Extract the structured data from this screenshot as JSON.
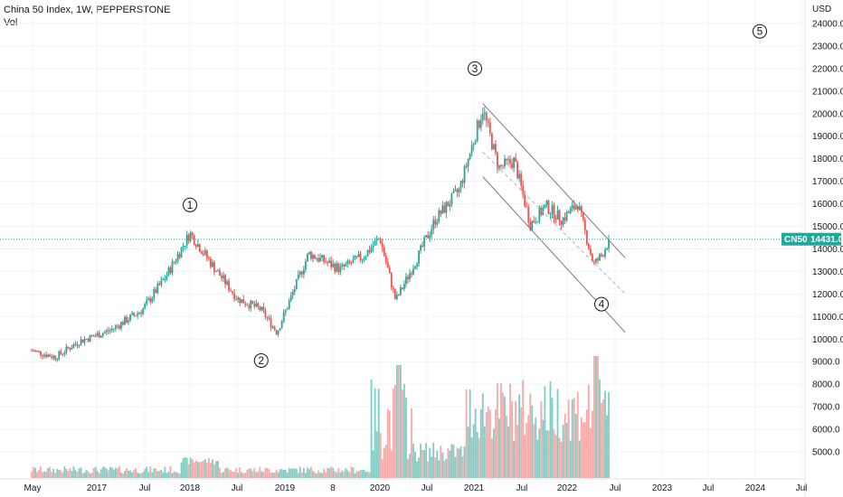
{
  "header": {
    "title": "China 50 Index, 1W, PEPPERSTONE",
    "sub": "Vol"
  },
  "colors": {
    "up": "#26a69a",
    "down": "#ef5350",
    "vol_up": "#80cbc4",
    "vol_down": "#f7a9a7",
    "channel": "#787b86",
    "price_line": "#26a69a",
    "grid": "#f0f3fa"
  },
  "chart_data": {
    "type": "candlestick",
    "symbol_tag": "CN50",
    "last_price": "14431.0",
    "y_axis_unit": "USD",
    "y_ticks": [
      "24000.0",
      "23000.0",
      "22000.0",
      "21000.0",
      "20000.0",
      "19000.0",
      "18000.0",
      "17000.0",
      "16000.0",
      "15000.0",
      "14000.0",
      "13000.0",
      "12000.0",
      "11000.0",
      "10000.0",
      "9000.0",
      "8000.0",
      "7000.0",
      "6000.0",
      "5000.0"
    ],
    "x_ticks": [
      "May",
      "2017",
      "Jul",
      "2018",
      "Jul",
      "2019",
      "8",
      "2020",
      "Jul",
      "2021",
      "Jul",
      "2022",
      "Jul",
      "2023",
      "Jul",
      "2024",
      "Jul"
    ],
    "price_keypoints": [
      {
        "t": "2016-05",
        "price": 9500
      },
      {
        "t": "2016-08",
        "price": 9200
      },
      {
        "t": "2016-11",
        "price": 9900
      },
      {
        "t": "2017-03",
        "price": 10400
      },
      {
        "t": "2017-07",
        "price": 11300
      },
      {
        "t": "2017-10",
        "price": 12800
      },
      {
        "t": "2018-01",
        "price": 14700
      },
      {
        "t": "2018-04",
        "price": 13200
      },
      {
        "t": "2018-07",
        "price": 11800
      },
      {
        "t": "2018-10",
        "price": 11300
      },
      {
        "t": "2018-12",
        "price": 10300
      },
      {
        "t": "2019-04",
        "price": 13800
      },
      {
        "t": "2019-08",
        "price": 13100
      },
      {
        "t": "2019-11",
        "price": 13700
      },
      {
        "t": "2020-01",
        "price": 14500
      },
      {
        "t": "2020-03",
        "price": 11700
      },
      {
        "t": "2020-06",
        "price": 13800
      },
      {
        "t": "2020-08",
        "price": 15300
      },
      {
        "t": "2020-11",
        "price": 16600
      },
      {
        "t": "2021-02",
        "price": 20200
      },
      {
        "t": "2021-04",
        "price": 17600
      },
      {
        "t": "2021-06",
        "price": 17900
      },
      {
        "t": "2021-08",
        "price": 15100
      },
      {
        "t": "2021-10",
        "price": 15900
      },
      {
        "t": "2021-12",
        "price": 15300
      },
      {
        "t": "2022-02",
        "price": 16000
      },
      {
        "t": "2022-04",
        "price": 13300
      },
      {
        "t": "2022-05",
        "price": 13700
      },
      {
        "t": "2022-06",
        "price": 14431
      }
    ],
    "channel_lines": [
      {
        "from": {
          "t": "2021-02",
          "price": 20450
        },
        "to": {
          "t": "2022-08",
          "price": 13600
        }
      },
      {
        "from": {
          "t": "2021-02",
          "price": 17200
        },
        "to": {
          "t": "2022-08",
          "price": 10300
        }
      },
      {
        "from": {
          "t": "2021-02",
          "price": 18300
        },
        "to": {
          "t": "2022-08",
          "price": 12000
        }
      }
    ],
    "wave_labels": [
      {
        "text": "1",
        "t": "2018-01",
        "price": 15950
      },
      {
        "text": "2",
        "t": "2018-10",
        "price": 9050
      },
      {
        "text": "3",
        "t": "2021-01",
        "price": 22000
      },
      {
        "text": "4",
        "t": "2022-05",
        "price": 11550
      },
      {
        "text": "5",
        "t": "2024-01",
        "price": 23650
      }
    ],
    "ylim": [
      4400,
      24800
    ],
    "grid": true
  }
}
